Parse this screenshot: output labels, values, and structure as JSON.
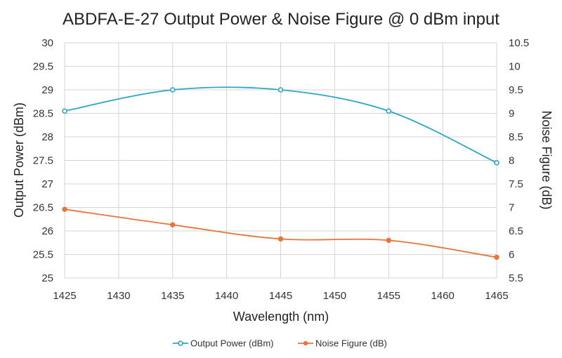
{
  "chart_data": {
    "type": "line",
    "title": "ABDFA-E-27 Output Power & Noise Figure @ 0 dBm input",
    "xlabel": "Wavelength (nm)",
    "ylabel": "Output Power (dBm)",
    "y2label": "Noise Figure (dB)",
    "xlim": [
      1425,
      1465
    ],
    "xticks": [
      "1425",
      "1430",
      "1435",
      "1440",
      "1445",
      "1450",
      "1455",
      "1460",
      "1465"
    ],
    "ylim": [
      25,
      30
    ],
    "yticks": [
      "25",
      "25.5",
      "26",
      "26.5",
      "27",
      "27.5",
      "28",
      "28.5",
      "29",
      "29.5",
      "30"
    ],
    "y2lim": [
      5.5,
      10.5
    ],
    "y2ticks": [
      "5.5",
      "6",
      "6.5",
      "7",
      "7.5",
      "8",
      "8.5",
      "9",
      "9.5",
      "10",
      "10.5"
    ],
    "grid": true,
    "legend_position": "bottom",
    "series": [
      {
        "name": "Output Power (dBm)",
        "axis": "left",
        "color": "#2aa6c8",
        "marker": "open-circle",
        "smooth": true,
        "x": [
          1425,
          1435,
          1445,
          1455,
          1465
        ],
        "y": [
          28.55,
          29.0,
          29.0,
          28.55,
          27.45
        ]
      },
      {
        "name": "Noise Figure (dB)",
        "axis": "right",
        "color": "#e8743b",
        "marker": "filled-circle",
        "smooth": true,
        "x": [
          1425,
          1435,
          1445,
          1455,
          1465
        ],
        "y": [
          6.96,
          6.63,
          6.33,
          6.3,
          5.94
        ]
      }
    ]
  }
}
